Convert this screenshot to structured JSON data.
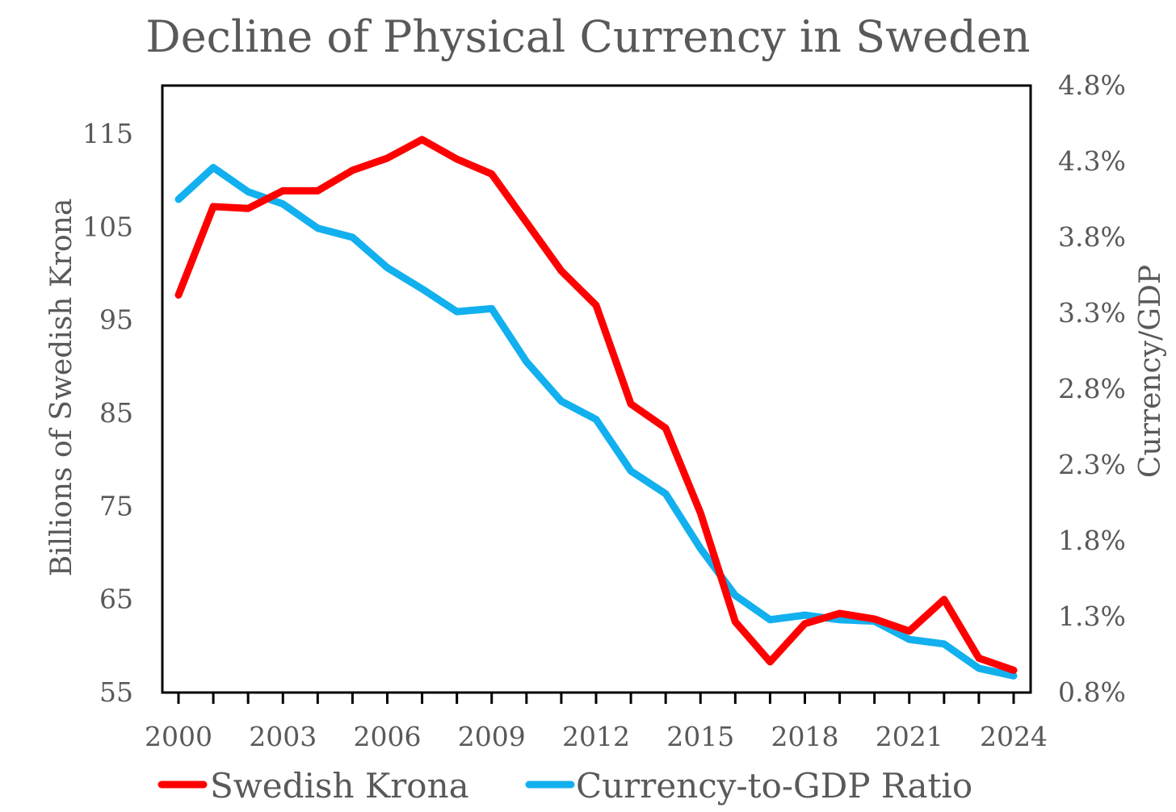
{
  "chart_data": {
    "type": "line",
    "title": "Decline of Physical Currency in Sweden",
    "xlabel": "",
    "ylabel": "Billions of Swedish Krona",
    "y2label": "Currency/GDP",
    "x": [
      2000,
      2001,
      2002,
      2003,
      2004,
      2005,
      2006,
      2007,
      2008,
      2009,
      2010,
      2011,
      2012,
      2013,
      2014,
      2015,
      2016,
      2017,
      2018,
      2019,
      2020,
      2021,
      2022,
      2023,
      2024
    ],
    "xticks": [
      "2000",
      "2003",
      "2006",
      "2009",
      "2012",
      "2015",
      "2018",
      "2021",
      "2024"
    ],
    "xlim": [
      2000,
      2024
    ],
    "ylim": [
      55,
      120.2
    ],
    "yticks": [
      "55",
      "65",
      "75",
      "85",
      "95",
      "105",
      "115"
    ],
    "y2lim": [
      0.8,
      4.8
    ],
    "y2ticks": [
      "0.8%",
      "1.3%",
      "1.8%",
      "2.3%",
      "2.8%",
      "3.3%",
      "3.8%",
      "4.3%",
      "4.8%"
    ],
    "grid": false,
    "legend_position": "bottom",
    "series": [
      {
        "name": "Swedish Krona",
        "axis": "left",
        "color": "#ff0000",
        "values": [
          97.7,
          107.2,
          107.0,
          108.9,
          108.9,
          111.1,
          112.4,
          114.4,
          112.3,
          110.7,
          105.5,
          100.3,
          96.6,
          86.0,
          83.4,
          74.3,
          62.6,
          58.3,
          62.4,
          63.5,
          62.9,
          61.6,
          65.0,
          58.7,
          57.4
        ]
      },
      {
        "name": "Currency-to-GDP Ratio",
        "axis": "right",
        "color": "#12b0ee",
        "values": [
          4.05,
          4.26,
          4.1,
          4.02,
          3.86,
          3.8,
          3.6,
          3.46,
          3.31,
          3.33,
          2.98,
          2.72,
          2.6,
          2.26,
          2.11,
          1.75,
          1.44,
          1.28,
          1.31,
          1.28,
          1.27,
          1.15,
          1.12,
          0.96,
          0.91
        ]
      }
    ]
  }
}
